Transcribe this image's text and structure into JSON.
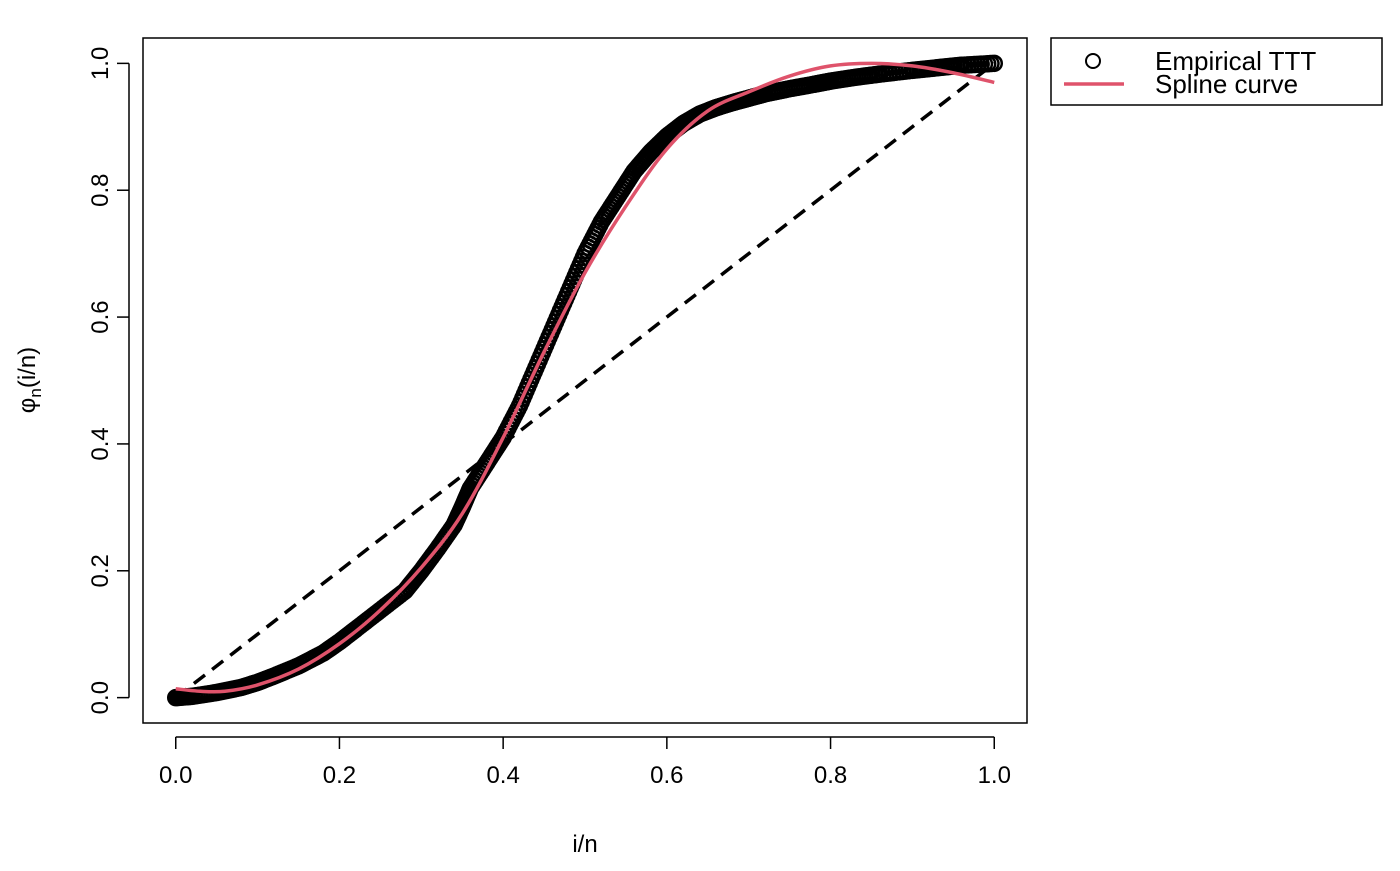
{
  "chart_data": {
    "type": "scatter",
    "title": "",
    "xlabel": "i/n",
    "ylabel_main": "φ",
    "ylabel_sub": "n",
    "ylabel_rest": "(i/n)",
    "xlim": [
      -0.04,
      1.04
    ],
    "ylim": [
      -0.04,
      1.04
    ],
    "xticks": [
      0.0,
      0.2,
      0.4,
      0.6,
      0.8,
      1.0
    ],
    "yticks": [
      0.0,
      0.2,
      0.4,
      0.6,
      0.8,
      1.0
    ],
    "xtick_labels": [
      "0.0",
      "0.2",
      "0.4",
      "0.6",
      "0.8",
      "1.0"
    ],
    "ytick_labels": [
      "0.0",
      "0.2",
      "0.4",
      "0.6",
      "0.8",
      "1.0"
    ],
    "grid": false,
    "legend_position": "outside-top-right",
    "series": [
      {
        "name": "Empirical TTT",
        "kind": "points",
        "color": "#000000",
        "x": [
          0.0,
          0.02,
          0.05,
          0.08,
          0.1,
          0.12,
          0.15,
          0.18,
          0.2,
          0.22,
          0.25,
          0.28,
          0.3,
          0.32,
          0.34,
          0.35,
          0.36,
          0.38,
          0.4,
          0.42,
          0.44,
          0.46,
          0.48,
          0.5,
          0.52,
          0.54,
          0.56,
          0.58,
          0.6,
          0.62,
          0.64,
          0.66,
          0.68,
          0.7,
          0.72,
          0.75,
          0.78,
          0.8,
          0.83,
          0.86,
          0.9,
          0.93,
          0.96,
          1.0
        ],
        "y": [
          0.0,
          0.002,
          0.008,
          0.016,
          0.024,
          0.034,
          0.05,
          0.07,
          0.088,
          0.108,
          0.138,
          0.168,
          0.2,
          0.235,
          0.272,
          0.3,
          0.33,
          0.37,
          0.41,
          0.46,
          0.52,
          0.58,
          0.64,
          0.7,
          0.75,
          0.79,
          0.83,
          0.86,
          0.885,
          0.905,
          0.92,
          0.93,
          0.938,
          0.945,
          0.952,
          0.96,
          0.967,
          0.972,
          0.978,
          0.983,
          0.989,
          0.993,
          0.997,
          1.0
        ]
      },
      {
        "name": "Spline curve",
        "kind": "line",
        "color": "#DF536B",
        "x": [
          0.0,
          0.03,
          0.06,
          0.1,
          0.15,
          0.2,
          0.25,
          0.3,
          0.35,
          0.4,
          0.45,
          0.5,
          0.55,
          0.6,
          0.65,
          0.7,
          0.75,
          0.8,
          0.85,
          0.9,
          0.95,
          1.0
        ],
        "y": [
          0.014,
          0.01,
          0.01,
          0.02,
          0.045,
          0.085,
          0.138,
          0.205,
          0.29,
          0.41,
          0.545,
          0.67,
          0.775,
          0.865,
          0.925,
          0.955,
          0.98,
          0.996,
          1.0,
          0.996,
          0.985,
          0.97
        ]
      },
      {
        "name": "",
        "kind": "reference",
        "color": "#000000",
        "dash": "dashed",
        "x": [
          0.0,
          1.0
        ],
        "y": [
          0.0,
          1.0
        ]
      }
    ]
  }
}
